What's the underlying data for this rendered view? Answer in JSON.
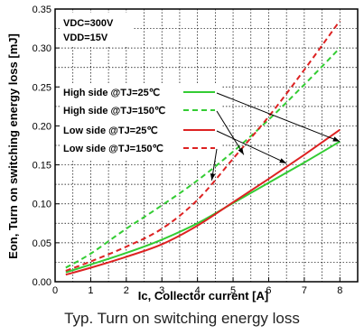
{
  "caption": "Typ. Turn on switching energy loss",
  "chart_data": {
    "type": "line",
    "xlabel": "Ic, Collector current [A]",
    "ylabel": "Eon, Turn on switching energy loss [mJ]",
    "xlim": [
      0,
      8.5
    ],
    "ylim": [
      0,
      0.35
    ],
    "x_ticks": [
      0,
      1,
      2,
      3,
      4,
      5,
      6,
      7,
      8
    ],
    "y_ticks": [
      0.0,
      0.05,
      0.1,
      0.15,
      0.2,
      0.25,
      0.3,
      0.35
    ],
    "x_tick_labels": [
      "0",
      "1",
      "2",
      "3",
      "4",
      "5",
      "6",
      "7",
      "8"
    ],
    "y_tick_labels": [
      "0.00",
      "0.05",
      "0.10",
      "0.15",
      "0.20",
      "0.25",
      "0.30",
      "0.35"
    ],
    "grid": true,
    "conditions": [
      "VDC=300V",
      "VDD=15V"
    ],
    "legend_position": "center-left",
    "series": [
      {
        "name": "High side @TJ=25℃",
        "color": "#33cc33",
        "dash": "solid",
        "x": [
          0.3,
          1,
          2,
          3,
          4,
          5,
          6,
          7,
          8
        ],
        "y": [
          0.012,
          0.022,
          0.037,
          0.054,
          0.075,
          0.101,
          0.127,
          0.153,
          0.18
        ]
      },
      {
        "name": "High side @TJ=150℃",
        "color": "#33cc33",
        "dash": "dashed",
        "x": [
          0.3,
          1,
          2,
          3,
          4,
          5,
          6,
          7,
          8
        ],
        "y": [
          0.018,
          0.036,
          0.068,
          0.098,
          0.13,
          0.167,
          0.208,
          0.253,
          0.3
        ]
      },
      {
        "name": "Low side @TJ=25℃",
        "color": "#dd2222",
        "dash": "solid",
        "x": [
          0.3,
          1,
          2,
          3,
          4,
          5,
          6,
          7,
          8
        ],
        "y": [
          0.009,
          0.018,
          0.032,
          0.048,
          0.072,
          0.102,
          0.132,
          0.163,
          0.195
        ]
      },
      {
        "name": "Low side @TJ=150℃",
        "color": "#dd2222",
        "dash": "dashed",
        "x": [
          0.3,
          1,
          2,
          3,
          4,
          5,
          6,
          7,
          8
        ],
        "y": [
          0.014,
          0.026,
          0.045,
          0.068,
          0.105,
          0.158,
          0.212,
          0.272,
          0.335
        ]
      }
    ],
    "legend_arrow_targets": [
      {
        "x": 8.0,
        "y": 0.18
      },
      {
        "x": 5.3,
        "y": 0.163
      },
      {
        "x": 6.5,
        "y": 0.152
      },
      {
        "x": 4.4,
        "y": 0.13
      }
    ]
  }
}
